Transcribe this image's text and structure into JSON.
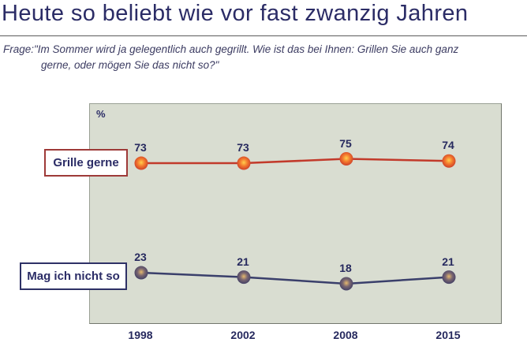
{
  "header": {
    "title": "Heute so beliebt wie vor fast zwanzig Jahren"
  },
  "question": {
    "line1": "Frage:\"Im Sommer wird ja gelegentlich auch gegrillt. Wie ist das bei Ihnen: Grillen Sie auch ganz",
    "line2": "gerne, oder mögen Sie das nicht so?\""
  },
  "colors": {
    "accent_navy": "#2b2c66",
    "chart_background": "#d9ddd1",
    "red_series": "#c23a2b",
    "navy_series": "#3a3f6b",
    "value_label": "#26295e"
  },
  "chart_data": {
    "type": "line",
    "title": "",
    "xlabel": "",
    "ylabel": "%",
    "ylim": [
      0,
      100
    ],
    "grid": false,
    "legend_position": "left-of-lines",
    "categories": [
      "1998",
      "2002",
      "2008",
      "2015"
    ],
    "series": [
      {
        "name": "Grille gerne",
        "values": [
          73,
          73,
          75,
          74
        ],
        "line_color": "#c23a2b",
        "point_inner": "#ffcf4e",
        "point_mid": "#f47a2e",
        "point_outer": "#c63628",
        "label_box_border": "#9e3a38"
      },
      {
        "name": "Mag ich nicht so",
        "values": [
          23,
          21,
          18,
          21
        ],
        "line_color": "#3a3f6b",
        "point_inner": "#e6b96e",
        "point_mid": "#7a6670",
        "point_outer": "#3a3a64",
        "label_box_border": "#2e3166"
      }
    ]
  }
}
